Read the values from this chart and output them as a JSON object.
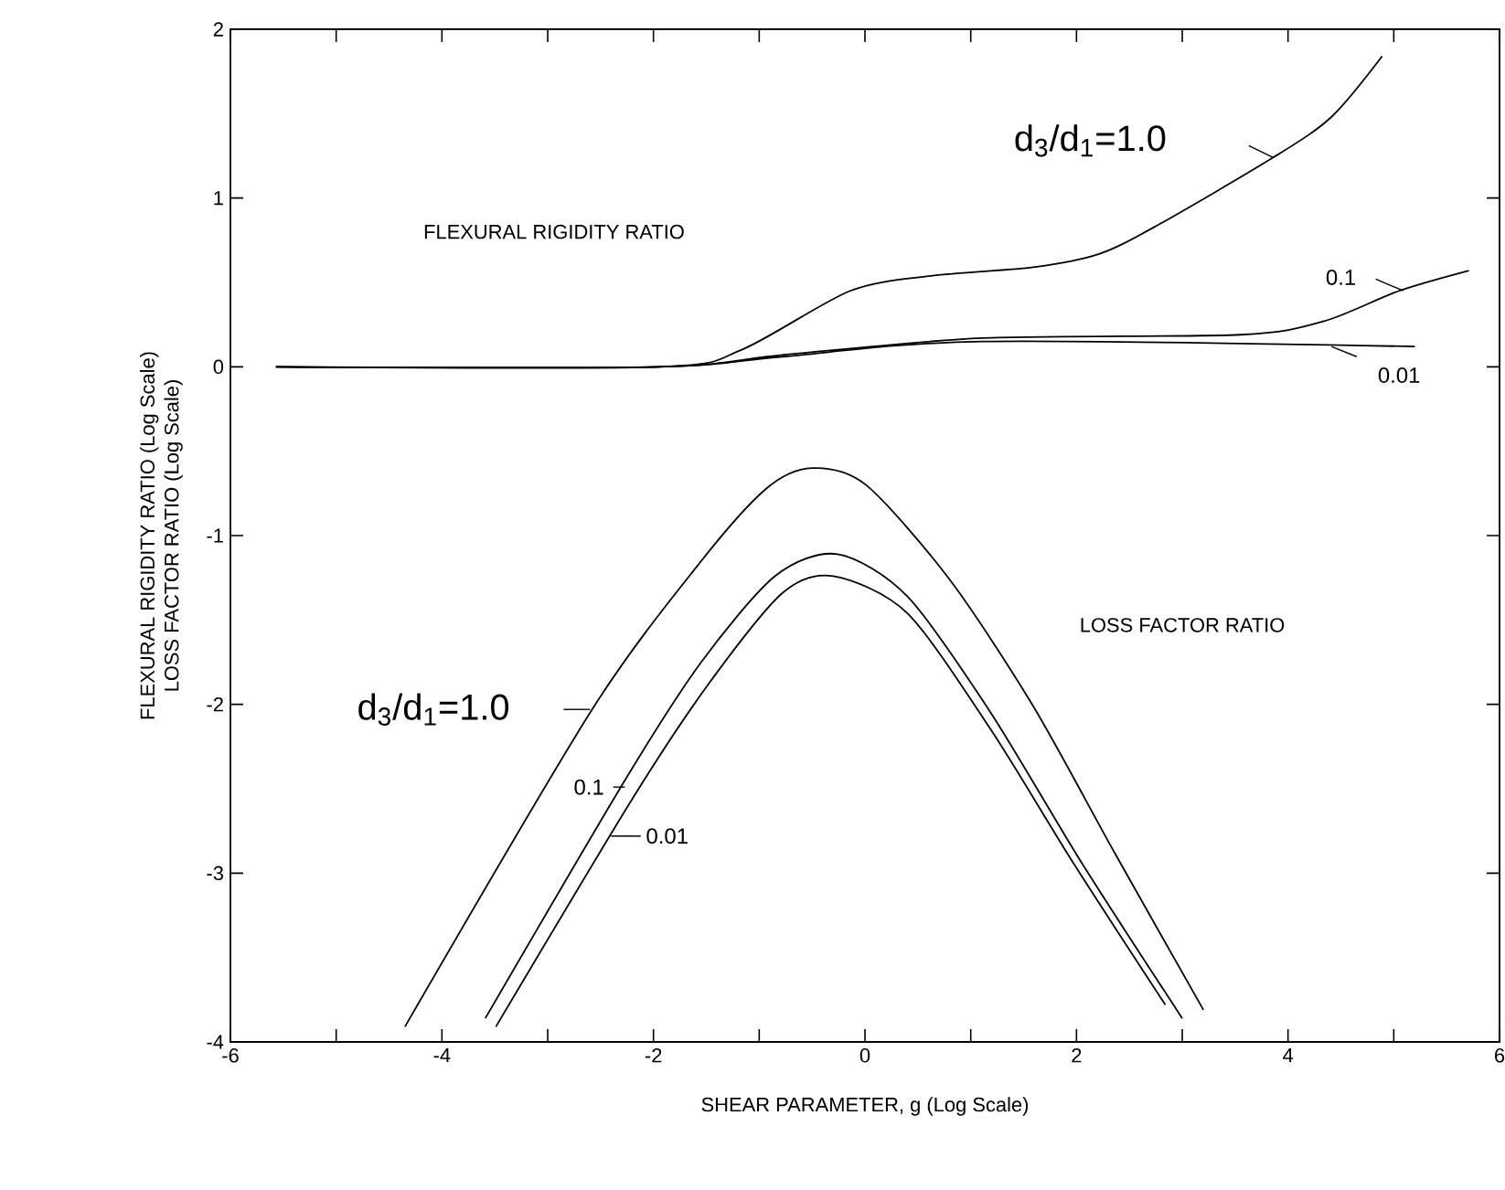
{
  "chart_data": {
    "type": "line",
    "xlabel": "SHEAR PARAMETER, g (Log Scale)",
    "ylabel": [
      "FLEXURAL RIGIDITY RATIO (Log Scale)",
      "LOSS FACTOR RATIO (Log Scale)"
    ],
    "xlim": [
      -6,
      6
    ],
    "ylim": [
      -4,
      2
    ],
    "xticks": [
      -6,
      {
        "value": -5,
        "label": null
      },
      -4,
      {
        "value": -3,
        "label": null
      },
      -2,
      {
        "value": -1,
        "label": null
      },
      0,
      {
        "value": 1,
        "label": null
      },
      2,
      {
        "value": 3,
        "label": null
      },
      4,
      {
        "value": 5,
        "label": null
      },
      6
    ],
    "yticks": [
      -4,
      -3,
      -2,
      -1,
      0,
      1,
      2
    ],
    "grid": false,
    "marker": "none",
    "line_style": "solid",
    "series": [
      {
        "color": "#000000",
        "x": [
          -5.57,
          -1.95,
          -1.17,
          -0.14,
          0.64,
          1.59,
          2.22,
          2.77,
          3.86,
          4.41,
          4.89
        ],
        "values": [
          0,
          0,
          0.1,
          0.45,
          0.54,
          0.59,
          0.67,
          0.84,
          1.24,
          1.48,
          1.84
        ]
      },
      {
        "color": "#000000",
        "x": [
          -5.57,
          -1.95,
          -0.78,
          1.11,
          3.55,
          4.34,
          5.05,
          5.71
        ],
        "values": [
          0,
          0,
          0.07,
          0.17,
          0.19,
          0.27,
          0.45,
          0.57
        ]
      },
      {
        "color": "#000000",
        "x": [
          -5.57,
          -1.95,
          -0.78,
          1.11,
          5.2
        ],
        "values": [
          0,
          0,
          0.06,
          0.15,
          0.12
        ]
      },
      {
        "color": "#000000",
        "x": [
          -4.35,
          -2.58,
          -1.56,
          -0.93,
          -0.5,
          0.01,
          0.8,
          1.59,
          2.37,
          3.2
        ],
        "values": [
          -3.91,
          -2.03,
          -1.16,
          -0.72,
          -0.6,
          -0.7,
          -1.26,
          -2.01,
          -2.89,
          -3.81
        ]
      },
      {
        "color": "#000000",
        "x": [
          -3.59,
          -2.27,
          -1.56,
          -0.85,
          -0.26,
          0.4,
          1.19,
          2.06,
          3.0
        ],
        "values": [
          -3.86,
          -2.45,
          -1.76,
          -1.24,
          -1.11,
          -1.36,
          -2.05,
          -2.95,
          -3.86
        ]
      },
      {
        "color": "#000000",
        "x": [
          -3.49,
          -2.19,
          -1.48,
          -0.78,
          -0.3,
          0.4,
          1.19,
          1.98,
          2.84
        ],
        "values": [
          -3.91,
          -2.55,
          -1.88,
          -1.34,
          -1.24,
          -1.46,
          -2.15,
          -2.95,
          -3.78
        ]
      }
    ],
    "annotations": [
      "d$_{3}$/d$_{1}$=1.0",
      "FLEXURAL RIGIDITY RATIO",
      "0.1",
      "0.01",
      "LOSS FACTOR RATIO",
      "d$_{3}$/d$_{1}$=1.0",
      "0.1",
      "0.01"
    ]
  }
}
